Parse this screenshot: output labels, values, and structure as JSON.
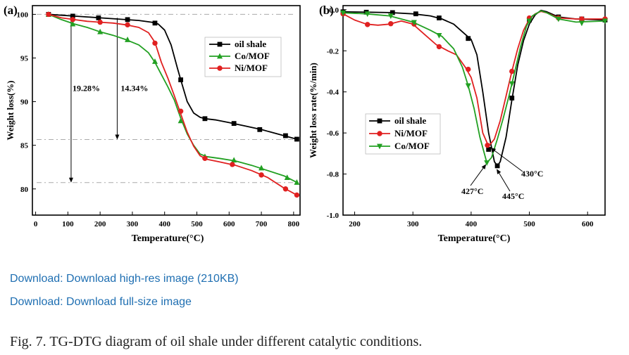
{
  "links": {
    "high_res": "Download: Download high-res image (210KB)",
    "full_size": "Download: Download full-size image"
  },
  "caption": "Fig. 7. TG-DTG diagram of oil shale under different catalytic conditions.",
  "colors": {
    "oil_shale": "#000000",
    "co_mof": "#22a022",
    "ni_mof": "#e02020",
    "link": "#1f6fb2"
  },
  "chart_data": [
    {
      "type": "line",
      "panel_label": "(a)",
      "xlabel": "Temperature(°C)",
      "ylabel": "Weight loss(%)",
      "xlim": [
        -10,
        820
      ],
      "ylim": [
        77,
        101
      ],
      "xticks": [
        0,
        100,
        200,
        300,
        400,
        500,
        600,
        700,
        800
      ],
      "yticks": [
        80,
        85,
        90,
        95,
        100
      ],
      "legend_position": "top-right",
      "annotations": [
        "19.28%",
        "14.34%"
      ],
      "reference_lines_y": [
        100,
        85.66,
        80.72
      ],
      "series": [
        {
          "name": "oil shale",
          "marker": "square",
          "color": "#000000",
          "points": [
            [
              40,
              100
            ],
            [
              80,
              99.9
            ],
            [
              120,
              99.8
            ],
            [
              160,
              99.7
            ],
            [
              200,
              99.6
            ],
            [
              240,
              99.5
            ],
            [
              280,
              99.4
            ],
            [
              320,
              99.3
            ],
            [
              360,
              99.1
            ],
            [
              380,
              98.9
            ],
            [
              400,
              98.2
            ],
            [
              420,
              96.5
            ],
            [
              440,
              93.8
            ],
            [
              450,
              92.5
            ],
            [
              470,
              90
            ],
            [
              490,
              88.7
            ],
            [
              510,
              88.2
            ],
            [
              525,
              88.05
            ],
            [
              560,
              87.9
            ],
            [
              600,
              87.6
            ],
            [
              650,
              87.2
            ],
            [
              700,
              86.8
            ],
            [
              750,
              86.3
            ],
            [
              780,
              86.0
            ],
            [
              810,
              85.7
            ]
          ],
          "markers": [
            [
              40,
              100
            ],
            [
              115,
              99.8
            ],
            [
              195,
              99.6
            ],
            [
              285,
              99.4
            ],
            [
              370,
              99.0
            ],
            [
              450,
              92.5
            ],
            [
              525,
              88.05
            ],
            [
              615,
              87.5
            ],
            [
              695,
              86.8
            ],
            [
              775,
              86.1
            ],
            [
              810,
              85.7
            ]
          ]
        },
        {
          "name": "Co/MOF",
          "marker": "triangle-up",
          "color": "#22a022",
          "points": [
            [
              40,
              100
            ],
            [
              80,
              99.4
            ],
            [
              120,
              98.9
            ],
            [
              160,
              98.5
            ],
            [
              200,
              98.0
            ],
            [
              240,
              97.6
            ],
            [
              280,
              97.1
            ],
            [
              320,
              96.5
            ],
            [
              350,
              95.6
            ],
            [
              370,
              94.5
            ],
            [
              390,
              93.1
            ],
            [
              410,
              91.7
            ],
            [
              430,
              90.2
            ],
            [
              450,
              88.1
            ],
            [
              470,
              86.3
            ],
            [
              490,
              85.0
            ],
            [
              510,
              84.0
            ],
            [
              530,
              83.7
            ],
            [
              570,
              83.5
            ],
            [
              620,
              83.2
            ],
            [
              670,
              82.7
            ],
            [
              720,
              82.1
            ],
            [
              770,
              81.5
            ],
            [
              810,
              80.75
            ]
          ],
          "markers": [
            [
              40,
              100
            ],
            [
              115,
              98.9
            ],
            [
              200,
              98.0
            ],
            [
              285,
              97.1
            ],
            [
              370,
              94.6
            ],
            [
              450,
              87.8
            ],
            [
              525,
              83.7
            ],
            [
              615,
              83.3
            ],
            [
              700,
              82.4
            ],
            [
              780,
              81.3
            ],
            [
              810,
              80.75
            ]
          ]
        },
        {
          "name": "Ni/MOF",
          "marker": "circle",
          "color": "#e02020",
          "points": [
            [
              40,
              100
            ],
            [
              80,
              99.6
            ],
            [
              120,
              99.4
            ],
            [
              160,
              99.2
            ],
            [
              200,
              99.1
            ],
            [
              240,
              99.0
            ],
            [
              280,
              98.8
            ],
            [
              320,
              98.5
            ],
            [
              350,
              97.9
            ],
            [
              370,
              96.8
            ],
            [
              390,
              94.5
            ],
            [
              410,
              92.7
            ],
            [
              430,
              90.7
            ],
            [
              450,
              88.6
            ],
            [
              470,
              86.5
            ],
            [
              490,
              84.9
            ],
            [
              510,
              83.8
            ],
            [
              530,
              83.4
            ],
            [
              570,
              83.1
            ],
            [
              620,
              82.7
            ],
            [
              670,
              82.1
            ],
            [
              720,
              81.3
            ],
            [
              770,
              80.1
            ],
            [
              810,
              79.3
            ]
          ],
          "markers": [
            [
              40,
              100
            ],
            [
              115,
              99.4
            ],
            [
              200,
              99.1
            ],
            [
              285,
              98.8
            ],
            [
              370,
              96.7
            ],
            [
              450,
              88.9
            ],
            [
              525,
              83.5
            ],
            [
              610,
              82.8
            ],
            [
              700,
              81.6
            ],
            [
              775,
              80.0
            ],
            [
              810,
              79.3
            ]
          ]
        }
      ]
    },
    {
      "type": "line",
      "panel_label": "(b)",
      "xlabel": "Temperature(°C)",
      "ylabel": "Weight loss rate(%/min)",
      "xlim": [
        180,
        630
      ],
      "ylim": [
        -1.0,
        0.02
      ],
      "xticks": [
        200,
        300,
        400,
        500,
        600
      ],
      "yticks": [
        0.0,
        -0.2,
        -0.4,
        -0.6,
        -0.8,
        -1.0
      ],
      "ytick_labels": [
        "0.0",
        "-0.2",
        "-0.4",
        "-0.6",
        "-0.8",
        "-1.0"
      ],
      "legend_position": "center-left",
      "annotations": [
        {
          "text": "430°C",
          "x": 430,
          "y": -0.665
        },
        {
          "text": "427°C",
          "x": 427,
          "y": -0.745
        },
        {
          "text": "445°C",
          "x": 445,
          "y": -0.765
        }
      ],
      "series": [
        {
          "name": "oil shale",
          "marker": "square",
          "color": "#000000",
          "points": [
            [
              180,
              -0.01
            ],
            [
              220,
              -0.012
            ],
            [
              260,
              -0.014
            ],
            [
              300,
              -0.02
            ],
            [
              330,
              -0.03
            ],
            [
              350,
              -0.045
            ],
            [
              370,
              -0.07
            ],
            [
              390,
              -0.12
            ],
            [
              400,
              -0.145
            ],
            [
              410,
              -0.22
            ],
            [
              420,
              -0.4
            ],
            [
              430,
              -0.6
            ],
            [
              440,
              -0.74
            ],
            [
              445,
              -0.76
            ],
            [
              450,
              -0.74
            ],
            [
              460,
              -0.62
            ],
            [
              470,
              -0.44
            ],
            [
              480,
              -0.27
            ],
            [
              490,
              -0.15
            ],
            [
              500,
              -0.07
            ],
            [
              510,
              -0.025
            ],
            [
              520,
              -0.003
            ],
            [
              530,
              -0.01
            ],
            [
              550,
              -0.035
            ],
            [
              580,
              -0.045
            ],
            [
              630,
              -0.05
            ]
          ],
          "markers": [
            [
              180,
              -0.01
            ],
            [
              220,
              -0.012
            ],
            [
              265,
              -0.014
            ],
            [
              305,
              -0.02
            ],
            [
              345,
              -0.04
            ],
            [
              395,
              -0.14
            ],
            [
              430,
              -0.68
            ],
            [
              445,
              -0.76
            ],
            [
              470,
              -0.43
            ],
            [
              500,
              -0.05
            ],
            [
              550,
              -0.035
            ],
            [
              590,
              -0.045
            ],
            [
              630,
              -0.05
            ]
          ]
        },
        {
          "name": "Ni/MOF",
          "marker": "circle",
          "color": "#e02020",
          "points": [
            [
              180,
              -0.02
            ],
            [
              200,
              -0.05
            ],
            [
              220,
              -0.07
            ],
            [
              240,
              -0.075
            ],
            [
              260,
              -0.07
            ],
            [
              280,
              -0.055
            ],
            [
              300,
              -0.07
            ],
            [
              320,
              -0.12
            ],
            [
              340,
              -0.17
            ],
            [
              360,
              -0.2
            ],
            [
              375,
              -0.22
            ],
            [
              390,
              -0.28
            ],
            [
              400,
              -0.33
            ],
            [
              410,
              -0.43
            ],
            [
              420,
              -0.6
            ],
            [
              430,
              -0.665
            ],
            [
              440,
              -0.63
            ],
            [
              450,
              -0.54
            ],
            [
              460,
              -0.42
            ],
            [
              470,
              -0.3
            ],
            [
              480,
              -0.19
            ],
            [
              490,
              -0.1
            ],
            [
              500,
              -0.045
            ],
            [
              510,
              -0.02
            ],
            [
              520,
              -0.008
            ],
            [
              530,
              -0.015
            ],
            [
              550,
              -0.04
            ],
            [
              580,
              -0.045
            ],
            [
              630,
              -0.045
            ]
          ],
          "markers": [
            [
              180,
              -0.02
            ],
            [
              222,
              -0.072
            ],
            [
              262,
              -0.068
            ],
            [
              302,
              -0.07
            ],
            [
              345,
              -0.18
            ],
            [
              395,
              -0.29
            ],
            [
              428,
              -0.66
            ],
            [
              470,
              -0.3
            ],
            [
              500,
              -0.04
            ],
            [
              550,
              -0.04
            ],
            [
              590,
              -0.045
            ],
            [
              630,
              -0.045
            ]
          ]
        },
        {
          "name": "Co/MOF",
          "marker": "triangle-down",
          "color": "#22a022",
          "points": [
            [
              180,
              -0.015
            ],
            [
              220,
              -0.02
            ],
            [
              260,
              -0.03
            ],
            [
              300,
              -0.06
            ],
            [
              330,
              -0.1
            ],
            [
              350,
              -0.13
            ],
            [
              370,
              -0.19
            ],
            [
              385,
              -0.28
            ],
            [
              395,
              -0.37
            ],
            [
              405,
              -0.48
            ],
            [
              415,
              -0.62
            ],
            [
              427,
              -0.745
            ],
            [
              435,
              -0.72
            ],
            [
              445,
              -0.63
            ],
            [
              455,
              -0.53
            ],
            [
              465,
              -0.42
            ],
            [
              475,
              -0.3
            ],
            [
              485,
              -0.18
            ],
            [
              495,
              -0.08
            ],
            [
              505,
              -0.03
            ],
            [
              520,
              -0.005
            ],
            [
              530,
              -0.015
            ],
            [
              550,
              -0.045
            ],
            [
              580,
              -0.06
            ],
            [
              630,
              -0.055
            ]
          ],
          "markers": [
            [
              180,
              -0.015
            ],
            [
              222,
              -0.02
            ],
            [
              262,
              -0.03
            ],
            [
              302,
              -0.062
            ],
            [
              345,
              -0.125
            ],
            [
              395,
              -0.37
            ],
            [
              427,
              -0.745
            ],
            [
              470,
              -0.36
            ],
            [
              500,
              -0.055
            ],
            [
              550,
              -0.045
            ],
            [
              590,
              -0.065
            ],
            [
              630,
              -0.055
            ]
          ]
        }
      ]
    }
  ]
}
